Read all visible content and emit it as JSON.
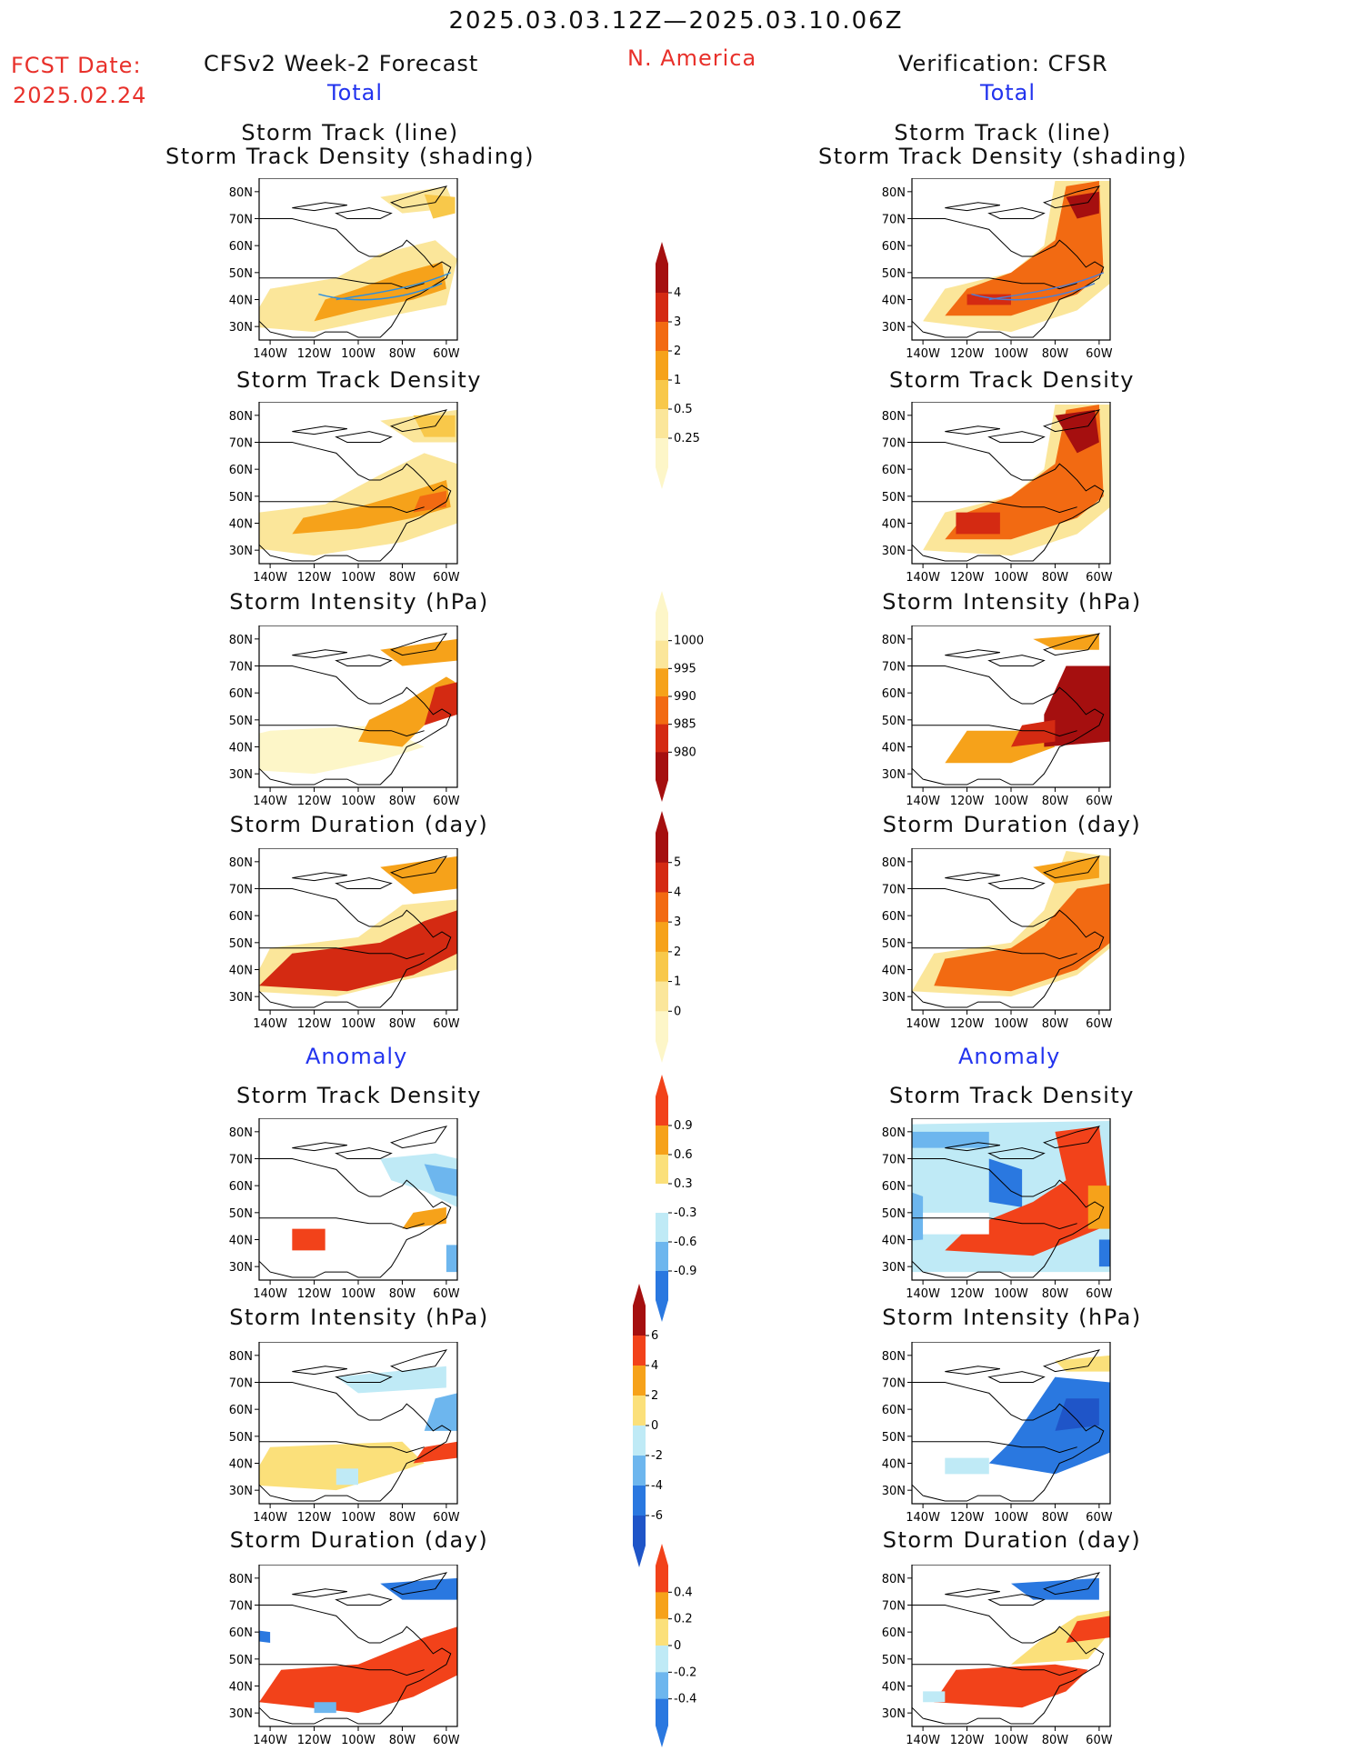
{
  "header": {
    "date_range": "2025.03.03.12Z—2025.03.10.06Z",
    "fcst_label": "FCST Date:",
    "fcst_date": "2025.02.24",
    "left_title": "CFSv2 Week-2 Forecast",
    "region": "N. America",
    "right_title": "Verification: CFSR"
  },
  "sections": {
    "total": "Total",
    "anomaly": "Anomaly"
  },
  "panel_titles": {
    "track_line": "Storm Track (line)",
    "track_shading": "Storm Track Density (shading)",
    "density": "Storm Track Density",
    "intensity": "Storm Intensity (hPa)",
    "duration": "Storm Duration (day)"
  },
  "axes": {
    "lat_labels": [
      "80N",
      "70N",
      "60N",
      "50N",
      "40N",
      "30N"
    ],
    "lon_labels": [
      "140W",
      "120W",
      "100W",
      "80W",
      "60W"
    ]
  },
  "colorbars": {
    "density_total": {
      "labels": [
        "4",
        "3",
        "2",
        "1",
        "0.5",
        "0.25"
      ],
      "colors": [
        "#a50f0f",
        "#d42a12",
        "#f26a12",
        "#f6a21a",
        "#f8c84a",
        "#fbe69a",
        "#fdf6c8"
      ]
    },
    "intensity_total": {
      "labels": [
        "1000",
        "995",
        "990",
        "985",
        "980"
      ],
      "colors": [
        "#fdf6c8",
        "#fbe69a",
        "#f6a21a",
        "#f26a12",
        "#d42a12",
        "#a50f0f"
      ]
    },
    "duration_total": {
      "labels": [
        "5",
        "4",
        "3",
        "2",
        "1",
        "0"
      ],
      "colors": [
        "#a50f0f",
        "#d42a12",
        "#f26a12",
        "#f6a21a",
        "#f8c84a",
        "#fbe69a",
        "#fdf6c8"
      ]
    },
    "density_anom": {
      "labels": [
        "0.9",
        "0.6",
        "0.3",
        "-0.3",
        "-0.6",
        "-0.9"
      ],
      "colors": [
        "#f2421a",
        "#f6a21a",
        "#fbe07a",
        "#ffffff",
        "#bfeaf6",
        "#6db6ee",
        "#2a78e0"
      ]
    },
    "intensity_anom": {
      "labels": [
        "6",
        "4",
        "2",
        "0",
        "-2",
        "-4",
        "-6"
      ],
      "colors": [
        "#a50f0f",
        "#f2421a",
        "#f6a21a",
        "#fbe07a",
        "#bfeaf6",
        "#6db6ee",
        "#2a78e0",
        "#1f55c8"
      ]
    },
    "duration_anom": {
      "labels": [
        "0.4",
        "0.2",
        "0",
        "-0.2",
        "-0.4"
      ],
      "colors": [
        "#f2421a",
        "#f6a21a",
        "#fbe07a",
        "#bfeaf6",
        "#6db6ee",
        "#2a78e0"
      ]
    }
  }
}
